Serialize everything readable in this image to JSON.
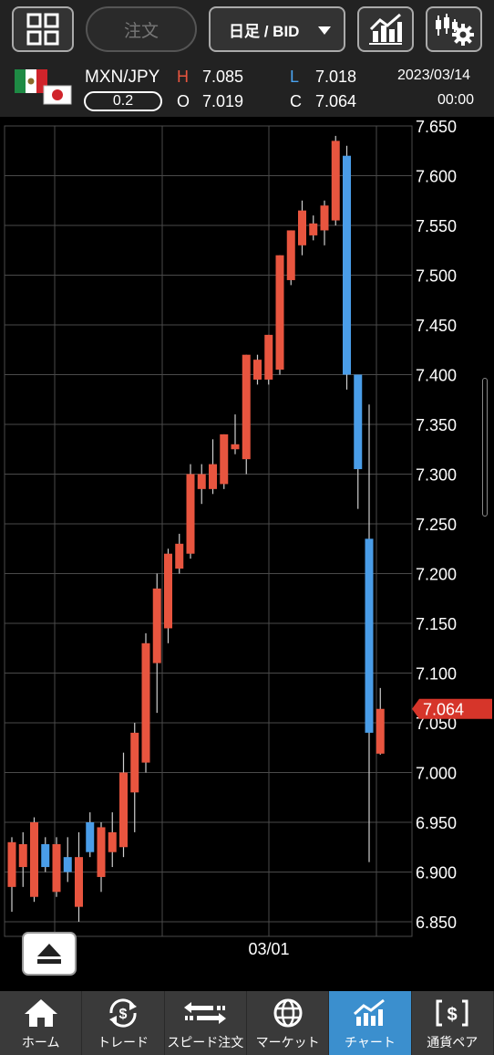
{
  "toolbar": {
    "order_label": "注文",
    "period_select": "日足 / BID"
  },
  "info": {
    "pair": "MXN/JPY",
    "lot": "0.2",
    "h_label": "H",
    "h_value": "7.085",
    "l_label": "L",
    "l_value": "7.018",
    "o_label": "O",
    "o_value": "7.019",
    "c_label": "C",
    "c_value": "7.064",
    "date": "2023/03/14",
    "time": "00:00"
  },
  "chart_data": {
    "type": "candlestick",
    "ylim": [
      6.85,
      7.65
    ],
    "y_ticks": [
      "7.650",
      "7.600",
      "7.550",
      "7.500",
      "7.450",
      "7.400",
      "7.350",
      "7.300",
      "7.250",
      "7.200",
      "7.150",
      "7.100",
      "7.050",
      "7.000",
      "6.950",
      "6.900",
      "6.850"
    ],
    "x_tick_label": "03/01",
    "current_price_label": "7.064",
    "candles": [
      {
        "o": 6.885,
        "h": 6.935,
        "l": 6.86,
        "c": 6.93
      },
      {
        "o": 6.905,
        "h": 6.94,
        "l": 6.885,
        "c": 6.928
      },
      {
        "o": 6.875,
        "h": 6.955,
        "l": 6.87,
        "c": 6.95
      },
      {
        "o": 6.928,
        "h": 6.935,
        "l": 6.9,
        "c": 6.905
      },
      {
        "o": 6.88,
        "h": 6.935,
        "l": 6.875,
        "c": 6.928
      },
      {
        "o": 6.915,
        "h": 6.935,
        "l": 6.89,
        "c": 6.9
      },
      {
        "o": 6.865,
        "h": 6.94,
        "l": 6.85,
        "c": 6.915
      },
      {
        "o": 6.95,
        "h": 6.96,
        "l": 6.915,
        "c": 6.92
      },
      {
        "o": 6.895,
        "h": 6.95,
        "l": 6.88,
        "c": 6.945
      },
      {
        "o": 6.92,
        "h": 6.96,
        "l": 6.905,
        "c": 6.94
      },
      {
        "o": 6.925,
        "h": 7.02,
        "l": 6.915,
        "c": 7.0
      },
      {
        "o": 6.98,
        "h": 7.05,
        "l": 6.94,
        "c": 7.04
      },
      {
        "o": 7.01,
        "h": 7.14,
        "l": 7.0,
        "c": 7.13
      },
      {
        "o": 7.11,
        "h": 7.2,
        "l": 7.06,
        "c": 7.185
      },
      {
        "o": 7.145,
        "h": 7.225,
        "l": 7.13,
        "c": 7.22
      },
      {
        "o": 7.205,
        "h": 7.24,
        "l": 7.2,
        "c": 7.23
      },
      {
        "o": 7.22,
        "h": 7.31,
        "l": 7.215,
        "c": 7.3
      },
      {
        "o": 7.285,
        "h": 7.31,
        "l": 7.27,
        "c": 7.3
      },
      {
        "o": 7.285,
        "h": 7.335,
        "l": 7.28,
        "c": 7.31
      },
      {
        "o": 7.29,
        "h": 7.34,
        "l": 7.285,
        "c": 7.34
      },
      {
        "o": 7.325,
        "h": 7.36,
        "l": 7.32,
        "c": 7.33
      },
      {
        "o": 7.315,
        "h": 7.42,
        "l": 7.3,
        "c": 7.42
      },
      {
        "o": 7.395,
        "h": 7.42,
        "l": 7.39,
        "c": 7.415
      },
      {
        "o": 7.395,
        "h": 7.44,
        "l": 7.39,
        "c": 7.44
      },
      {
        "o": 7.405,
        "h": 7.52,
        "l": 7.4,
        "c": 7.52
      },
      {
        "o": 7.495,
        "h": 7.545,
        "l": 7.49,
        "c": 7.545
      },
      {
        "o": 7.53,
        "h": 7.575,
        "l": 7.52,
        "c": 7.565
      },
      {
        "o": 7.54,
        "h": 7.56,
        "l": 7.535,
        "c": 7.552
      },
      {
        "o": 7.545,
        "h": 7.575,
        "l": 7.53,
        "c": 7.57
      },
      {
        "o": 7.555,
        "h": 7.64,
        "l": 7.55,
        "c": 7.635
      },
      {
        "o": 7.62,
        "h": 7.63,
        "l": 7.385,
        "c": 7.4
      },
      {
        "o": 7.4,
        "h": 7.395,
        "l": 7.265,
        "c": 7.305
      },
      {
        "o": 7.235,
        "h": 7.37,
        "l": 6.91,
        "c": 7.04
      },
      {
        "o": 7.019,
        "h": 7.085,
        "l": 7.018,
        "c": 7.064
      }
    ]
  },
  "colors": {
    "up": "#e8553f",
    "down": "#4a9de8",
    "grid": "#4a4a4a",
    "current_price_bg": "#d6352a",
    "nav_active": "#3b8fce"
  },
  "nav": [
    {
      "label": "ホーム",
      "icon": "home-icon"
    },
    {
      "label": "トレード",
      "icon": "trade-icon"
    },
    {
      "label": "スピード注文",
      "icon": "speed-order-icon"
    },
    {
      "label": "マーケット",
      "icon": "globe-icon"
    },
    {
      "label": "チャート",
      "icon": "chart-icon",
      "active": true
    },
    {
      "label": "通貨ペア",
      "icon": "currency-pair-icon"
    }
  ]
}
